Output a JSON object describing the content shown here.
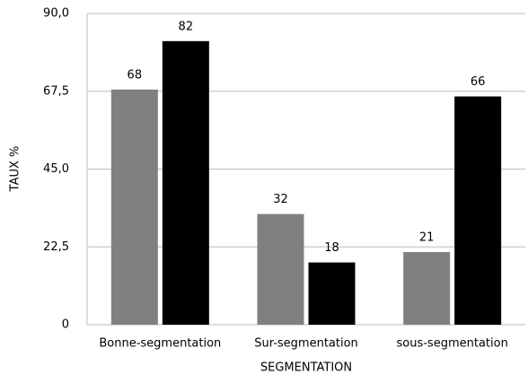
{
  "chart_data": {
    "type": "bar",
    "x_label": "SEGMENTATION",
    "y_label": "TAUX %",
    "categories": [
      "Bonne-segmentation",
      "Sur-segmentation",
      "sous-segmentation"
    ],
    "series": [
      {
        "color": "#808080",
        "values": [
          68,
          32,
          21
        ]
      },
      {
        "color": "#000000",
        "values": [
          82,
          18,
          66
        ]
      }
    ],
    "ylim": [
      0,
      90
    ],
    "yticks": [
      0,
      {
        "value": 22.5,
        "label": "22,5"
      },
      {
        "value": 45,
        "label": "45,0"
      },
      {
        "value": 67.5,
        "label": "67,5"
      },
      {
        "value": 90,
        "label": "90,0"
      }
    ],
    "grid": true
  }
}
